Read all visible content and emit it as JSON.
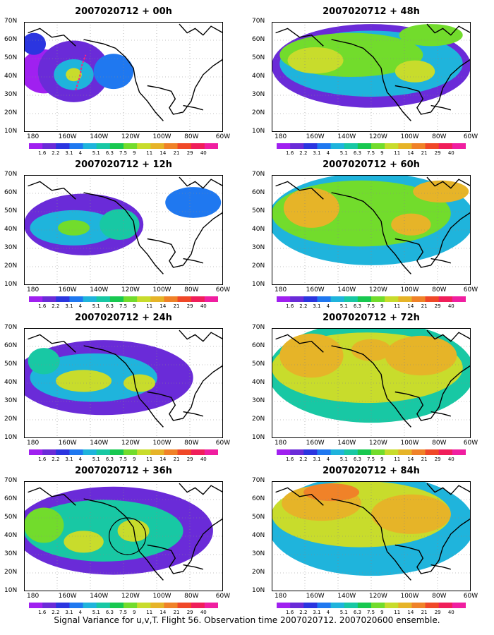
{
  "panels": [
    {
      "title": "2007020712 + 00h"
    },
    {
      "title": "2007020712 + 48h"
    },
    {
      "title": "2007020712 + 12h"
    },
    {
      "title": "2007020712 + 60h"
    },
    {
      "title": "2007020712 + 24h"
    },
    {
      "title": "2007020712 + 72h"
    },
    {
      "title": "2007020712 + 36h"
    },
    {
      "title": "2007020712 + 84h"
    }
  ],
  "lat_labels": [
    "70N",
    "60N",
    "50N",
    "40N",
    "30N",
    "20N",
    "10N"
  ],
  "lon_labels": [
    "180",
    "160W",
    "140W",
    "120W",
    "100W",
    "80W",
    "60W"
  ],
  "colorbar": {
    "labels": [
      "1.6",
      "2.2",
      "3.1",
      "4",
      "5.1",
      "6.3",
      "7.5",
      "9",
      "11",
      "14",
      "21",
      "29",
      "40"
    ],
    "colors": [
      "#a020f0",
      "#6a2bd8",
      "#2b35e0",
      "#1f78f0",
      "#1fb4dc",
      "#18c8a4",
      "#18c850",
      "#72dc2c",
      "#c8dc2c",
      "#e6b428",
      "#f08228",
      "#f04828",
      "#f01e5a",
      "#f01ea0"
    ]
  },
  "caption": "Signal Variance for u,v,T. Flight 56. Observation time 2007020712. 2007020600 ensemble."
}
